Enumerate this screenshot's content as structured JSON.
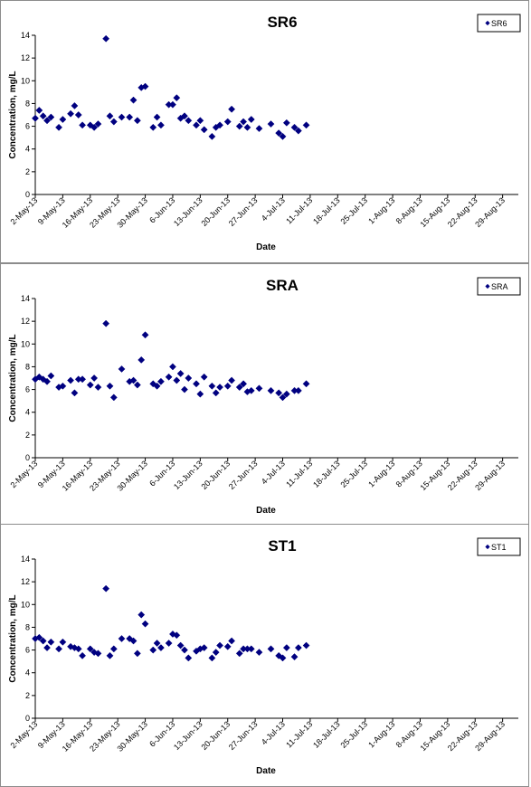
{
  "chart_data": [
    {
      "type": "scatter",
      "title": "SR6",
      "xlabel": "Date",
      "ylabel": "Concentration, mg/L",
      "ylim": [
        0,
        14
      ],
      "yticks": [
        "0",
        "2",
        "4",
        "6",
        "8",
        "10",
        "12",
        "14"
      ],
      "x_tick_labels": [
        "2-May-13",
        "9-May-13",
        "16-May-13",
        "23-May-13",
        "30-May-13",
        "6-Jun-13",
        "13-Jun-13",
        "20-Jun-13",
        "27-Jun-13",
        "4-Jul-13",
        "11-Jul-13",
        "18-Jul-13",
        "25-Jul-13",
        "1-Aug-13",
        "8-Aug-13",
        "15-Aug-13",
        "22-Aug-13",
        "29-Aug-13"
      ],
      "xlim": [
        "2-May-13",
        "2-Sep-13"
      ],
      "grid": false,
      "legend_position": "top-right",
      "marker_color": "#000080",
      "series": [
        {
          "name": "SR6",
          "points": [
            [
              "2-May-13",
              6.7
            ],
            [
              "3-May-13",
              7.4
            ],
            [
              "4-May-13",
              6.9
            ],
            [
              "5-May-13",
              6.5
            ],
            [
              "6-May-13",
              6.8
            ],
            [
              "8-May-13",
              5.9
            ],
            [
              "9-May-13",
              6.6
            ],
            [
              "11-May-13",
              7.1
            ],
            [
              "12-May-13",
              7.8
            ],
            [
              "13-May-13",
              7.0
            ],
            [
              "14-May-13",
              6.1
            ],
            [
              "16-May-13",
              6.1
            ],
            [
              "17-May-13",
              5.9
            ],
            [
              "18-May-13",
              6.2
            ],
            [
              "20-May-13",
              13.7
            ],
            [
              "21-May-13",
              6.9
            ],
            [
              "22-May-13",
              6.4
            ],
            [
              "24-May-13",
              6.8
            ],
            [
              "26-May-13",
              6.8
            ],
            [
              "27-May-13",
              8.3
            ],
            [
              "28-May-13",
              6.5
            ],
            [
              "29-May-13",
              9.4
            ],
            [
              "30-May-13",
              9.5
            ],
            [
              "1-Jun-13",
              5.9
            ],
            [
              "2-Jun-13",
              6.8
            ],
            [
              "3-Jun-13",
              6.1
            ],
            [
              "5-Jun-13",
              7.9
            ],
            [
              "6-Jun-13",
              7.9
            ],
            [
              "7-Jun-13",
              8.5
            ],
            [
              "8-Jun-13",
              6.7
            ],
            [
              "9-Jun-13",
              6.9
            ],
            [
              "10-Jun-13",
              6.5
            ],
            [
              "12-Jun-13",
              6.1
            ],
            [
              "13-Jun-13",
              6.5
            ],
            [
              "14-Jun-13",
              5.7
            ],
            [
              "16-Jun-13",
              5.1
            ],
            [
              "17-Jun-13",
              5.9
            ],
            [
              "18-Jun-13",
              6.1
            ],
            [
              "20-Jun-13",
              6.4
            ],
            [
              "21-Jun-13",
              7.5
            ],
            [
              "23-Jun-13",
              6.0
            ],
            [
              "24-Jun-13",
              6.4
            ],
            [
              "25-Jun-13",
              5.9
            ],
            [
              "26-Jun-13",
              6.6
            ],
            [
              "28-Jun-13",
              5.8
            ],
            [
              "1-Jul-13",
              6.2
            ],
            [
              "3-Jul-13",
              5.4
            ],
            [
              "4-Jul-13",
              5.1
            ],
            [
              "5-Jul-13",
              6.3
            ],
            [
              "7-Jul-13",
              5.9
            ],
            [
              "8-Jul-13",
              5.6
            ],
            [
              "10-Jul-13",
              6.1
            ]
          ]
        }
      ]
    },
    {
      "type": "scatter",
      "title": "SRA",
      "xlabel": "Date",
      "ylabel": "Concentration, mg/L",
      "ylim": [
        0,
        14
      ],
      "yticks": [
        "0",
        "2",
        "4",
        "6",
        "8",
        "10",
        "12",
        "14"
      ],
      "x_tick_labels": [
        "2-May-13",
        "9-May-13",
        "16-May-13",
        "23-May-13",
        "30-May-13",
        "6-Jun-13",
        "13-Jun-13",
        "20-Jun-13",
        "27-Jun-13",
        "4-Jul-13",
        "11-Jul-13",
        "18-Jul-13",
        "25-Jul-13",
        "1-Aug-13",
        "8-Aug-13",
        "15-Aug-13",
        "22-Aug-13",
        "29-Aug-13"
      ],
      "xlim": [
        "2-May-13",
        "2-Sep-13"
      ],
      "grid": false,
      "legend_position": "top-right",
      "marker_color": "#000080",
      "series": [
        {
          "name": "SRA",
          "points": [
            [
              "2-May-13",
              6.9
            ],
            [
              "3-May-13",
              7.1
            ],
            [
              "4-May-13",
              6.9
            ],
            [
              "5-May-13",
              6.7
            ],
            [
              "6-May-13",
              7.2
            ],
            [
              "8-May-13",
              6.2
            ],
            [
              "9-May-13",
              6.3
            ],
            [
              "11-May-13",
              6.8
            ],
            [
              "12-May-13",
              5.7
            ],
            [
              "13-May-13",
              6.9
            ],
            [
              "14-May-13",
              6.9
            ],
            [
              "16-May-13",
              6.4
            ],
            [
              "17-May-13",
              7.0
            ],
            [
              "18-May-13",
              6.2
            ],
            [
              "20-May-13",
              11.8
            ],
            [
              "21-May-13",
              6.3
            ],
            [
              "22-May-13",
              5.3
            ],
            [
              "24-May-13",
              7.8
            ],
            [
              "26-May-13",
              6.7
            ],
            [
              "27-May-13",
              6.8
            ],
            [
              "28-May-13",
              6.4
            ],
            [
              "29-May-13",
              8.6
            ],
            [
              "30-May-13",
              10.8
            ],
            [
              "1-Jun-13",
              6.5
            ],
            [
              "2-Jun-13",
              6.3
            ],
            [
              "3-Jun-13",
              6.7
            ],
            [
              "5-Jun-13",
              7.1
            ],
            [
              "6-Jun-13",
              8.0
            ],
            [
              "7-Jun-13",
              6.8
            ],
            [
              "8-Jun-13",
              7.4
            ],
            [
              "9-Jun-13",
              6.0
            ],
            [
              "10-Jun-13",
              7.0
            ],
            [
              "12-Jun-13",
              6.5
            ],
            [
              "13-Jun-13",
              5.6
            ],
            [
              "14-Jun-13",
              7.1
            ],
            [
              "16-Jun-13",
              6.3
            ],
            [
              "17-Jun-13",
              5.7
            ],
            [
              "18-Jun-13",
              6.2
            ],
            [
              "20-Jun-13",
              6.3
            ],
            [
              "21-Jun-13",
              6.8
            ],
            [
              "23-Jun-13",
              6.2
            ],
            [
              "24-Jun-13",
              6.5
            ],
            [
              "25-Jun-13",
              5.8
            ],
            [
              "26-Jun-13",
              5.9
            ],
            [
              "28-Jun-13",
              6.1
            ],
            [
              "1-Jul-13",
              5.9
            ],
            [
              "3-Jul-13",
              5.7
            ],
            [
              "4-Jul-13",
              5.3
            ],
            [
              "5-Jul-13",
              5.6
            ],
            [
              "7-Jul-13",
              5.9
            ],
            [
              "8-Jul-13",
              5.9
            ],
            [
              "10-Jul-13",
              6.5
            ]
          ]
        }
      ]
    },
    {
      "type": "scatter",
      "title": "ST1",
      "xlabel": "Date",
      "ylabel": "Concentration, mg/L",
      "ylim": [
        0,
        14
      ],
      "yticks": [
        "0",
        "2",
        "4",
        "6",
        "8",
        "10",
        "12",
        "14"
      ],
      "x_tick_labels": [
        "2-May-13",
        "9-May-13",
        "16-May-13",
        "23-May-13",
        "30-May-13",
        "6-Jun-13",
        "13-Jun-13",
        "20-Jun-13",
        "27-Jun-13",
        "4-Jul-13",
        "11-Jul-13",
        "18-Jul-13",
        "25-Jul-13",
        "1-Aug-13",
        "8-Aug-13",
        "15-Aug-13",
        "22-Aug-13",
        "29-Aug-13"
      ],
      "xlim": [
        "2-May-13",
        "2-Sep-13"
      ],
      "grid": false,
      "legend_position": "top-right",
      "marker_color": "#000080",
      "series": [
        {
          "name": "ST1",
          "points": [
            [
              "2-May-13",
              7.0
            ],
            [
              "3-May-13",
              7.1
            ],
            [
              "4-May-13",
              6.8
            ],
            [
              "5-May-13",
              6.2
            ],
            [
              "6-May-13",
              6.7
            ],
            [
              "8-May-13",
              6.1
            ],
            [
              "9-May-13",
              6.7
            ],
            [
              "11-May-13",
              6.3
            ],
            [
              "12-May-13",
              6.2
            ],
            [
              "13-May-13",
              6.1
            ],
            [
              "14-May-13",
              5.5
            ],
            [
              "16-May-13",
              6.1
            ],
            [
              "17-May-13",
              5.8
            ],
            [
              "18-May-13",
              5.7
            ],
            [
              "20-May-13",
              11.4
            ],
            [
              "21-May-13",
              5.5
            ],
            [
              "22-May-13",
              6.1
            ],
            [
              "24-May-13",
              7.0
            ],
            [
              "26-May-13",
              7.0
            ],
            [
              "27-May-13",
              6.8
            ],
            [
              "28-May-13",
              5.7
            ],
            [
              "29-May-13",
              9.1
            ],
            [
              "30-May-13",
              8.3
            ],
            [
              "1-Jun-13",
              6.0
            ],
            [
              "2-Jun-13",
              6.6
            ],
            [
              "3-Jun-13",
              6.2
            ],
            [
              "5-Jun-13",
              6.6
            ],
            [
              "6-Jun-13",
              7.4
            ],
            [
              "7-Jun-13",
              7.3
            ],
            [
              "8-Jun-13",
              6.4
            ],
            [
              "9-Jun-13",
              6.0
            ],
            [
              "10-Jun-13",
              5.3
            ],
            [
              "12-Jun-13",
              5.9
            ],
            [
              "13-Jun-13",
              6.1
            ],
            [
              "14-Jun-13",
              6.2
            ],
            [
              "16-Jun-13",
              5.3
            ],
            [
              "17-Jun-13",
              5.8
            ],
            [
              "18-Jun-13",
              6.4
            ],
            [
              "20-Jun-13",
              6.3
            ],
            [
              "21-Jun-13",
              6.8
            ],
            [
              "23-Jun-13",
              5.7
            ],
            [
              "24-Jun-13",
              6.1
            ],
            [
              "25-Jun-13",
              6.1
            ],
            [
              "26-Jun-13",
              6.1
            ],
            [
              "28-Jun-13",
              5.8
            ],
            [
              "1-Jul-13",
              6.1
            ],
            [
              "3-Jul-13",
              5.5
            ],
            [
              "4-Jul-13",
              5.3
            ],
            [
              "5-Jul-13",
              6.2
            ],
            [
              "7-Jul-13",
              5.4
            ],
            [
              "8-Jul-13",
              6.2
            ],
            [
              "10-Jul-13",
              6.4
            ]
          ]
        }
      ]
    }
  ]
}
